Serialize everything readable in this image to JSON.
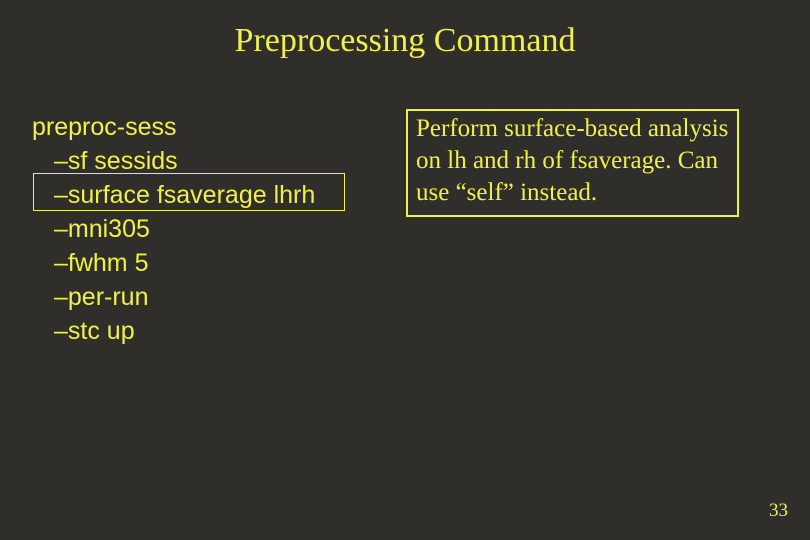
{
  "colors": {
    "background": "#2f2e2b",
    "text": "#f0f04a",
    "border": "#f0f04a"
  },
  "typography": {
    "title_family": "Times New Roman",
    "title_size_pt": 26,
    "body_serif_family": "Times New Roman",
    "body_sans_family": "Arial",
    "body_size_pt": 19,
    "pagenum_size_pt": 14
  },
  "slide": {
    "title": "Preprocessing Command",
    "command": "preproc-sess",
    "options": [
      "–sf sessids",
      "–surface fsaverage lhrh",
      "–mni305",
      "–fwhm 5",
      "–per-run",
      "–stc up"
    ],
    "highlighted_option_index": 1,
    "description": "Perform surface-based analysis on lh and rh of fsaverage. Can use “self” instead.",
    "page_number": "33"
  }
}
